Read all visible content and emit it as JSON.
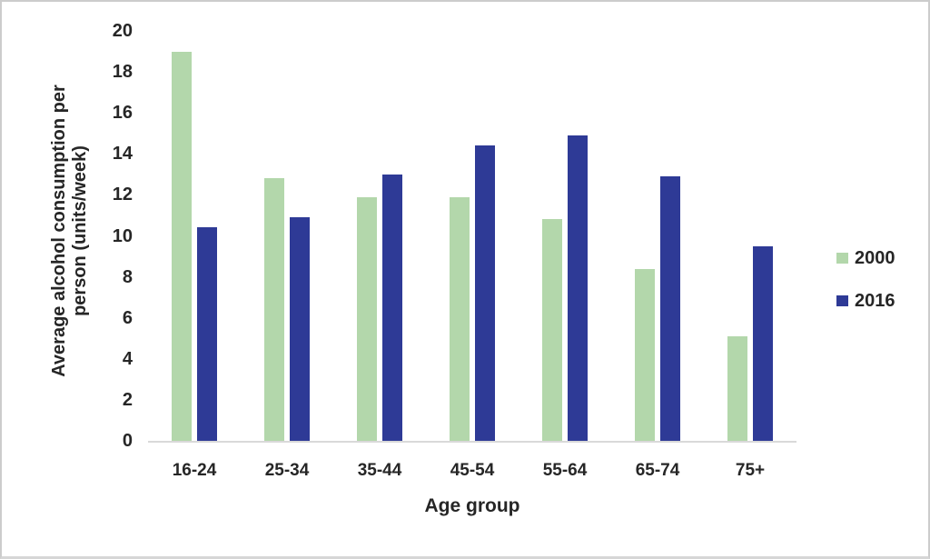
{
  "chart_data": {
    "type": "bar",
    "title": "",
    "categories": [
      "16-24",
      "25-34",
      "35-44",
      "45-54",
      "55-64",
      "65-74",
      "75+"
    ],
    "series": [
      {
        "name": "2000",
        "color": "#b3d7ab",
        "values": [
          19.0,
          12.8,
          11.9,
          11.9,
          10.8,
          8.4,
          5.1
        ]
      },
      {
        "name": "2016",
        "color": "#2e3a96",
        "values": [
          10.4,
          10.9,
          13.0,
          14.4,
          14.9,
          12.9,
          9.5
        ]
      }
    ],
    "xlabel": "Age group",
    "ylabel": "Average alcohol consumption per person (units/week)",
    "ylabel_lines": [
      "Average alcohol consumption per",
      "person (units/week)"
    ],
    "ylim": [
      0,
      20
    ],
    "ytick_step": 2,
    "ytick_labels": [
      "0",
      "2",
      "4",
      "6",
      "8",
      "10",
      "12",
      "14",
      "16",
      "18",
      "20"
    ],
    "grid": false,
    "legend_position": "right",
    "colors": {
      "axis_line": "#d9d9d9",
      "text": "#262626",
      "background": "#ffffff",
      "border": "#cccccc"
    }
  }
}
